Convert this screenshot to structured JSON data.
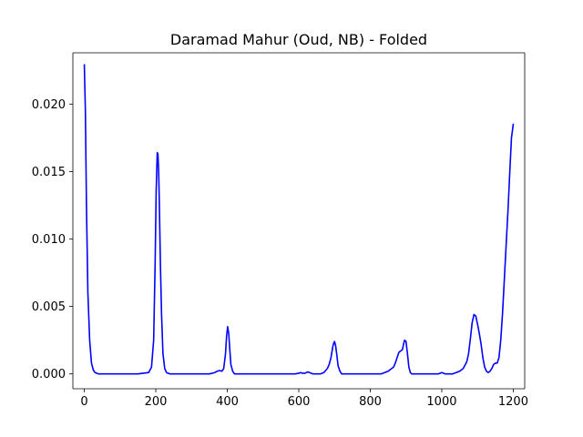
{
  "chart_data": {
    "type": "line",
    "title": "Daramad Mahur (Oud, NB) - Folded",
    "xlabel": "",
    "ylabel": "",
    "xlim": [
      -32,
      1232
    ],
    "ylim": [
      -0.0011,
      0.0238
    ],
    "xticks": [
      0,
      200,
      400,
      600,
      800,
      1000,
      1200
    ],
    "xtick_labels": [
      "0",
      "200",
      "400",
      "600",
      "800",
      "1000",
      "1200"
    ],
    "yticks": [
      0.0,
      0.005,
      0.01,
      0.015,
      0.02
    ],
    "ytick_labels": [
      "0.000",
      "0.005",
      "0.010",
      "0.015",
      "0.020"
    ],
    "grid": false,
    "series": [
      {
        "color": "#0000ff",
        "x": [
          0,
          3,
          6,
          10,
          15,
          20,
          25,
          30,
          40,
          60,
          100,
          150,
          180,
          188,
          194,
          198,
          201,
          204,
          206,
          208,
          210,
          213,
          216,
          220,
          225,
          230,
          240,
          300,
          350,
          365,
          372,
          378,
          385,
          390,
          395,
          398,
          401,
          404,
          407,
          410,
          415,
          420,
          430,
          500,
          590,
          600,
          605,
          610,
          618,
          625,
          630,
          635,
          640,
          650,
          660,
          670,
          680,
          685,
          690,
          695,
          698,
          700,
          703,
          706,
          710,
          715,
          720,
          730,
          780,
          810,
          830,
          840,
          850,
          860,
          865,
          870,
          875,
          880,
          885,
          890,
          893,
          896,
          900,
          904,
          908,
          912,
          916,
          920,
          940,
          990,
          1000,
          1005,
          1010,
          1020,
          1030,
          1040,
          1050,
          1060,
          1070,
          1075,
          1080,
          1085,
          1090,
          1095,
          1100,
          1105,
          1110,
          1115,
          1120,
          1125,
          1130,
          1135,
          1140,
          1145,
          1150,
          1155,
          1160,
          1165,
          1170,
          1175,
          1180,
          1185,
          1190,
          1195,
          1200
        ],
        "y": [
          0.0229,
          0.0195,
          0.0125,
          0.006,
          0.0025,
          0.0008,
          0.0003,
          0.0001,
          0.0,
          0.0,
          0.0,
          0.0,
          0.0001,
          0.0005,
          0.0025,
          0.008,
          0.0135,
          0.0164,
          0.0163,
          0.015,
          0.0125,
          0.008,
          0.0045,
          0.0015,
          0.0004,
          0.0001,
          0.0,
          0.0,
          0.0,
          0.0001,
          0.0002,
          0.00025,
          0.0002,
          0.0004,
          0.0015,
          0.0028,
          0.0035,
          0.003,
          0.0018,
          0.0007,
          0.0002,
          0.0,
          0.0,
          0.0,
          0.0,
          5e-05,
          0.0001,
          5e-05,
          5e-05,
          0.00015,
          0.0001,
          5e-05,
          0.0,
          0.0,
          0.0,
          0.0001,
          0.0004,
          0.0007,
          0.0012,
          0.002,
          0.0023,
          0.0024,
          0.0021,
          0.0015,
          0.0006,
          0.0002,
          0.0,
          0.0,
          0.0,
          0.0,
          0.0,
          0.0001,
          0.0002,
          0.0004,
          0.0005,
          0.0008,
          0.0012,
          0.0016,
          0.0017,
          0.0018,
          0.0022,
          0.0025,
          0.0024,
          0.0015,
          0.0005,
          0.0001,
          0.0,
          0.0,
          0.0,
          0.0,
          0.0001,
          5e-05,
          0.0,
          0.0,
          0.0,
          0.0001,
          0.0002,
          0.0004,
          0.0009,
          0.0015,
          0.0026,
          0.0038,
          0.0044,
          0.0043,
          0.0037,
          0.003,
          0.0022,
          0.0012,
          0.0005,
          0.0002,
          0.0001,
          0.0002,
          0.0004,
          0.0007,
          0.0008,
          0.0008,
          0.0012,
          0.0025,
          0.0045,
          0.007,
          0.0095,
          0.012,
          0.0148,
          0.0175,
          0.0185
        ]
      }
    ]
  }
}
